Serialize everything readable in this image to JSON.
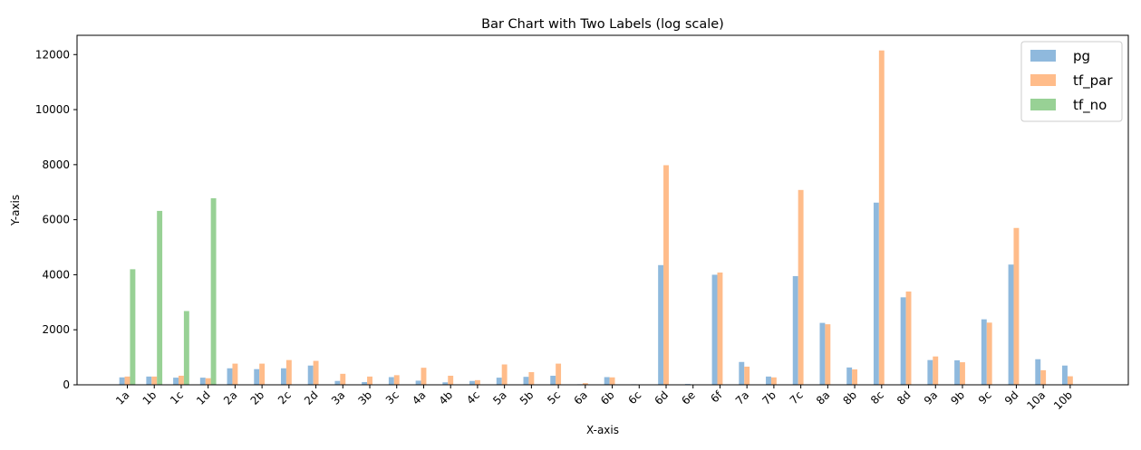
{
  "chart_data": {
    "type": "bar",
    "title": "Bar Chart with Two Labels (log scale)",
    "xlabel": "X-axis",
    "ylabel": "Y-axis",
    "ylim": [
      0,
      12700
    ],
    "yticks": [
      0,
      2000,
      4000,
      6000,
      8000,
      10000,
      12000
    ],
    "legend_position": "top-right",
    "grid": false,
    "categories": [
      "1a",
      "1b",
      "1c",
      "1d",
      "2a",
      "2b",
      "2c",
      "2d",
      "3a",
      "3b",
      "3c",
      "4a",
      "4b",
      "4c",
      "5a",
      "5b",
      "5c",
      "6a",
      "6b",
      "6c",
      "6d",
      "6e",
      "6f",
      "7a",
      "7b",
      "7c",
      "8a",
      "8b",
      "8c",
      "8d",
      "9a",
      "9b",
      "9c",
      "9d",
      "10a",
      "10b"
    ],
    "series": [
      {
        "name": "pg",
        "color": "#8fb9dd",
        "values": [
          270,
          300,
          260,
          260,
          600,
          570,
          600,
          700,
          140,
          100,
          280,
          150,
          90,
          140,
          260,
          290,
          330,
          20,
          280,
          20,
          4350,
          30,
          4000,
          830,
          300,
          3950,
          2250,
          630,
          6620,
          3180,
          900,
          890,
          2380,
          4370,
          930,
          700
        ]
      },
      {
        "name": "tf_par",
        "color": "#ffbc8a",
        "values": [
          300,
          300,
          330,
          240,
          770,
          770,
          900,
          870,
          400,
          300,
          350,
          620,
          330,
          170,
          740,
          460,
          770,
          60,
          270,
          10,
          7980,
          10,
          4080,
          660,
          270,
          7080,
          2200,
          560,
          12150,
          3390,
          1030,
          820,
          2260,
          5700,
          530,
          310
        ]
      },
      {
        "name": "tf_no",
        "color": "#98d195",
        "values": [
          4200,
          6320,
          2680,
          6780,
          0,
          0,
          0,
          0,
          0,
          0,
          0,
          0,
          0,
          0,
          0,
          0,
          0,
          0,
          0,
          0,
          0,
          0,
          0,
          0,
          0,
          0,
          0,
          0,
          0,
          0,
          0,
          0,
          0,
          0,
          0,
          0
        ]
      }
    ]
  }
}
